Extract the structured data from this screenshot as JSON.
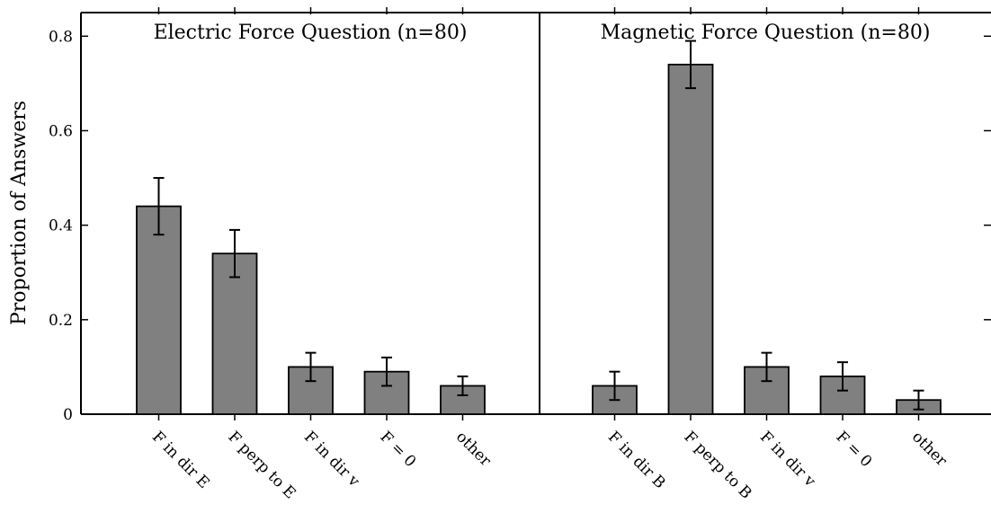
{
  "chart_data": {
    "type": "bar",
    "ylabel": "Proportion of Answers",
    "ylim": [
      0,
      0.85
    ],
    "yticks": [
      0,
      0.2,
      0.4,
      0.6,
      0.8
    ],
    "ytick_labels": [
      "0",
      "0.2",
      "0.4",
      "0.6",
      "0.8"
    ],
    "bar_color": "#808080",
    "error_bars": true,
    "panels": [
      {
        "title": "Electric Force Question (n=80)",
        "categories": [
          "F in dir E",
          "F perp to E",
          "F in dir v",
          "F = 0",
          "other"
        ],
        "values": [
          0.44,
          0.34,
          0.1,
          0.09,
          0.06
        ],
        "errors": [
          0.06,
          0.05,
          0.03,
          0.03,
          0.02
        ]
      },
      {
        "title": "Magnetic Force Question (n=80)",
        "categories": [
          "F in dir B",
          "F perp to B",
          "F in dir v",
          "F = 0",
          "other"
        ],
        "values": [
          0.06,
          0.74,
          0.1,
          0.08,
          0.03
        ],
        "errors": [
          0.03,
          0.05,
          0.03,
          0.03,
          0.02
        ]
      }
    ]
  }
}
